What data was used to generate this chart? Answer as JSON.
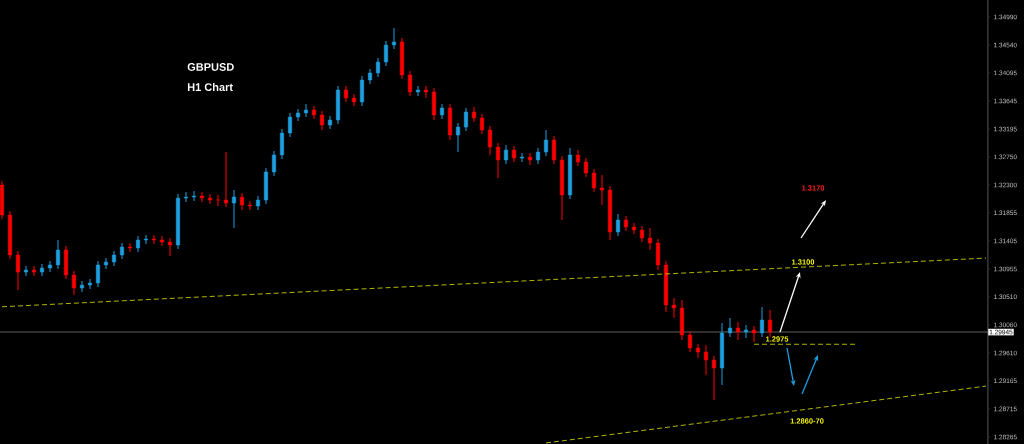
{
  "chart_data": {
    "type": "candlestick",
    "title": "GBPUSD",
    "subtitle": "H1 Chart",
    "categories": [
      null,
      null,
      null,
      null,
      null,
      null,
      null,
      null,
      null,
      null,
      null,
      null,
      null,
      null,
      null,
      null,
      null,
      null,
      null,
      null,
      null,
      null,
      null,
      null,
      null,
      null,
      null,
      null,
      null,
      null,
      null,
      null,
      null,
      null,
      null,
      null,
      null,
      null,
      null,
      null,
      null,
      null,
      null,
      null,
      null,
      null,
      null,
      null,
      null,
      null,
      null,
      null,
      null,
      null,
      null,
      null,
      null,
      null,
      null,
      null,
      null,
      null,
      null,
      null,
      null,
      null,
      null,
      null,
      null,
      null,
      null,
      null,
      null,
      null,
      null,
      null,
      null,
      null,
      null,
      null,
      null,
      null,
      null,
      null,
      null,
      null,
      null,
      null,
      null,
      null,
      null,
      null,
      null,
      null,
      null,
      null,
      null,
      null,
      null,
      null,
      null,
      null,
      null,
      null,
      null,
      null,
      null,
      null,
      null,
      null,
      null,
      null,
      null,
      null,
      null,
      null,
      null,
      null,
      null,
      null,
      null,
      null,
      null,
      null
    ],
    "ohlc": [
      [
        1.323,
        1.32364,
        1.31755,
        1.31819
      ],
      [
        1.31819,
        1.31883,
        1.31115,
        1.31179
      ],
      [
        1.31179,
        1.31243,
        1.30618,
        1.30906
      ],
      [
        1.30906,
        1.31003,
        1.30842,
        1.30938
      ],
      [
        1.30938,
        1.31003,
        1.30842,
        1.30906
      ],
      [
        1.30906,
        1.31035,
        1.30842,
        1.3097
      ],
      [
        1.3097,
        1.31083,
        1.30906,
        1.31019
      ],
      [
        1.31019,
        1.31419,
        1.30954,
        1.31259
      ],
      [
        1.31259,
        1.31323,
        1.30794,
        1.30858
      ],
      [
        1.30858,
        1.30922,
        1.30538,
        1.3065
      ],
      [
        1.3065,
        1.30762,
        1.30586,
        1.30698
      ],
      [
        1.30698,
        1.30794,
        1.30634,
        1.3073
      ],
      [
        1.3073,
        1.31083,
        1.30666,
        1.31019
      ],
      [
        1.31019,
        1.31131,
        1.30954,
        1.31067
      ],
      [
        1.31067,
        1.31243,
        1.31003,
        1.31179
      ],
      [
        1.31179,
        1.31371,
        1.31115,
        1.31307
      ],
      [
        1.31307,
        1.31371,
        1.31227,
        1.31291
      ],
      [
        1.31291,
        1.31483,
        1.31227,
        1.31419
      ],
      [
        1.31419,
        1.31499,
        1.31355,
        1.31435
      ],
      [
        1.31435,
        1.31499,
        1.31355,
        1.31419
      ],
      [
        1.31419,
        1.31483,
        1.31323,
        1.31387
      ],
      [
        1.31387,
        1.31451,
        1.31163,
        1.31339
      ],
      [
        1.31339,
        1.32155,
        1.31275,
        1.32091
      ],
      [
        1.32091,
        1.32187,
        1.32027,
        1.32107
      ],
      [
        1.32107,
        1.32203,
        1.32043,
        1.32123
      ],
      [
        1.32123,
        1.32187,
        1.32027,
        1.32091
      ],
      [
        1.32091,
        1.32155,
        1.31995,
        1.32059
      ],
      [
        1.32059,
        1.32139,
        1.31963,
        1.32059
      ],
      [
        1.32059,
        1.32828,
        1.31947,
        1.32011
      ],
      [
        1.32011,
        1.32219,
        1.31611,
        1.32107
      ],
      [
        1.32107,
        1.32171,
        1.31899,
        1.31979
      ],
      [
        1.31979,
        1.32043,
        1.31899,
        1.31963
      ],
      [
        1.31963,
        1.32123,
        1.31899,
        1.32059
      ],
      [
        1.32059,
        1.32572,
        1.31995,
        1.32508
      ],
      [
        1.32508,
        1.32844,
        1.32444,
        1.3278
      ],
      [
        1.3278,
        1.33196,
        1.32716,
        1.33132
      ],
      [
        1.33132,
        1.33453,
        1.33068,
        1.33389
      ],
      [
        1.33389,
        1.33517,
        1.33324,
        1.33453
      ],
      [
        1.33453,
        1.33597,
        1.33389,
        1.33501
      ],
      [
        1.33501,
        1.33565,
        1.33356,
        1.33421
      ],
      [
        1.33421,
        1.33485,
        1.3318,
        1.3326
      ],
      [
        1.3326,
        1.33405,
        1.33196,
        1.3334
      ],
      [
        1.3334,
        1.33885,
        1.33276,
        1.33821
      ],
      [
        1.33821,
        1.33885,
        1.33629,
        1.33693
      ],
      [
        1.33693,
        1.33757,
        1.33565,
        1.33629
      ],
      [
        1.33629,
        1.34045,
        1.33565,
        1.33981
      ],
      [
        1.33981,
        1.34157,
        1.33917,
        1.34093
      ],
      [
        1.34093,
        1.34333,
        1.34029,
        1.34269
      ],
      [
        1.34269,
        1.34606,
        1.34205,
        1.34541
      ],
      [
        1.34541,
        1.34814,
        1.34477,
        1.34589
      ],
      [
        1.34589,
        1.34654,
        1.33997,
        1.34061
      ],
      [
        1.34061,
        1.34125,
        1.33725,
        1.33789
      ],
      [
        1.33789,
        1.33885,
        1.33725,
        1.33821
      ],
      [
        1.33821,
        1.33885,
        1.33693,
        1.33789
      ],
      [
        1.33789,
        1.33853,
        1.3334,
        1.33421
      ],
      [
        1.33421,
        1.33597,
        1.33356,
        1.33533
      ],
      [
        1.33533,
        1.33597,
        1.3302,
        1.331
      ],
      [
        1.331,
        1.33292,
        1.32828,
        1.33228
      ],
      [
        1.33228,
        1.33533,
        1.33164,
        1.33469
      ],
      [
        1.33469,
        1.33549,
        1.33308,
        1.33373
      ],
      [
        1.33373,
        1.33437,
        1.33116,
        1.3318
      ],
      [
        1.3318,
        1.33244,
        1.3278,
        1.32908
      ],
      [
        1.32908,
        1.32972,
        1.32412,
        1.327
      ],
      [
        1.327,
        1.3294,
        1.32636,
        1.3286
      ],
      [
        1.3286,
        1.32924,
        1.32668,
        1.32732
      ],
      [
        1.32732,
        1.32812,
        1.32668,
        1.32748
      ],
      [
        1.32748,
        1.32812,
        1.3262,
        1.327
      ],
      [
        1.327,
        1.32892,
        1.32636,
        1.32828
      ],
      [
        1.32828,
        1.3318,
        1.32764,
        1.3302
      ],
      [
        1.3302,
        1.33084,
        1.32636,
        1.327
      ],
      [
        1.327,
        1.32764,
        1.31739,
        1.32139
      ],
      [
        1.32139,
        1.32892,
        1.32075,
        1.3278
      ],
      [
        1.3278,
        1.3286,
        1.32604,
        1.32668
      ],
      [
        1.32668,
        1.32732,
        1.32428,
        1.32492
      ],
      [
        1.32492,
        1.32556,
        1.32187,
        1.32251
      ],
      [
        1.32251,
        1.3246,
        1.31979,
        1.32219
      ],
      [
        1.32219,
        1.32284,
        1.31419,
        1.31547
      ],
      [
        1.31547,
        1.31835,
        1.31483,
        1.31739
      ],
      [
        1.31739,
        1.31803,
        1.31563,
        1.31627
      ],
      [
        1.31627,
        1.31691,
        1.31515,
        1.31579
      ],
      [
        1.31579,
        1.31643,
        1.31387,
        1.31451
      ],
      [
        1.31451,
        1.31611,
        1.31259,
        1.31371
      ],
      [
        1.31371,
        1.31435,
        1.30938,
        1.31019
      ],
      [
        1.31019,
        1.31083,
        1.30266,
        1.30378
      ],
      [
        1.30378,
        1.3049,
        1.3017,
        1.3033
      ],
      [
        1.3033,
        1.30458,
        1.29818,
        1.29898
      ],
      [
        1.29898,
        1.29962,
        1.29626,
        1.2969
      ],
      [
        1.2969,
        1.29754,
        1.2953,
        1.29626
      ],
      [
        1.29626,
        1.29738,
        1.29257,
        1.29498
      ],
      [
        1.29498,
        1.29562,
        1.28857,
        1.2937
      ],
      [
        1.2937,
        1.3009,
        1.29097,
        1.2993
      ],
      [
        1.2993,
        1.3017,
        1.29866,
        1.3001
      ],
      [
        1.3001,
        1.30106,
        1.29818,
        1.29946
      ],
      [
        1.29946,
        1.30058,
        1.2985,
        1.29978
      ],
      [
        1.29978,
        1.30042,
        1.29786,
        1.2993
      ],
      [
        1.2993,
        1.30346,
        1.29866,
        1.30138
      ],
      [
        1.30138,
        1.30298,
        1.29866,
        1.29945
      ],
      null,
      null,
      null,
      null,
      null,
      null,
      null,
      null,
      null,
      null,
      null,
      null,
      null,
      null,
      null,
      null,
      null,
      null,
      null,
      null,
      null,
      null,
      null,
      null,
      null,
      null,
      null
    ],
    "colors": [
      "#ff0000",
      "#ff0000",
      "#ff0000",
      "#1e9fe0",
      "#ff0000",
      "#1e9fe0",
      "#1e9fe0",
      "#1e9fe0",
      "#ff0000",
      "#ff0000",
      "#1e9fe0",
      "#1e9fe0",
      "#1e9fe0",
      "#1e9fe0",
      "#1e9fe0",
      "#1e9fe0",
      "#ff0000",
      "#1e9fe0",
      "#1e9fe0",
      "#ff0000",
      "#ff0000",
      "#ff0000",
      "#1e9fe0",
      "#1e9fe0",
      "#1e9fe0",
      "#ff0000",
      "#ff0000",
      "#ff0000",
      "#ff0000",
      "#1e9fe0",
      "#ff0000",
      "#ff0000",
      "#1e9fe0",
      "#1e9fe0",
      "#1e9fe0",
      "#1e9fe0",
      "#1e9fe0",
      "#1e9fe0",
      "#1e9fe0",
      "#ff0000",
      "#ff0000",
      "#1e9fe0",
      "#1e9fe0",
      "#ff0000",
      "#ff0000",
      "#1e9fe0",
      "#1e9fe0",
      "#1e9fe0",
      "#1e9fe0",
      "#1e9fe0",
      "#ff0000",
      "#ff0000",
      "#1e9fe0",
      "#ff0000",
      "#ff0000",
      "#1e9fe0",
      "#ff0000",
      "#1e9fe0",
      "#1e9fe0",
      "#ff0000",
      "#ff0000",
      "#ff0000",
      "#ff0000",
      "#1e9fe0",
      "#ff0000",
      "#1e9fe0",
      "#ff0000",
      "#1e9fe0",
      "#1e9fe0",
      "#ff0000",
      "#ff0000",
      "#1e9fe0",
      "#ff0000",
      "#ff0000",
      "#ff0000",
      "#ff0000",
      "#ff0000",
      "#1e9fe0",
      "#ff0000",
      "#ff0000",
      "#ff0000",
      "#ff0000",
      "#ff0000",
      "#ff0000",
      "#ff0000",
      "#ff0000",
      "#ff0000",
      "#ff0000",
      "#ff0000",
      "#ff0000",
      "#1e9fe0",
      "#1e9fe0",
      "#ff0000",
      "#1e9fe0",
      "#ff0000",
      "#1e9fe0",
      "#ff0000",
      null,
      null,
      null,
      null,
      null,
      null,
      null,
      null,
      null,
      null,
      null,
      null,
      null,
      null,
      null,
      null,
      null,
      null,
      null,
      null,
      null,
      null,
      null,
      null,
      null,
      null,
      null
    ],
    "ylim": [
      1.28153,
      1.35262
    ],
    "yticks": [
      {
        "value": 1.3499,
        "label": "1.34990"
      },
      {
        "value": 1.3454,
        "label": "1.34540"
      },
      1.34095,
      1.33645,
      1.33195,
      {
        "value": 1.3275,
        "label": "1.32750"
      },
      {
        "value": 1.323,
        "label": "1.32300"
      },
      1.31855,
      1.31405,
      1.30955,
      {
        "value": 1.3051,
        "label": "1.30510"
      },
      {
        "value": 1.3006,
        "label": "1.30060"
      },
      {
        "value": 1.2961,
        "label": "1.29610"
      },
      1.29165,
      1.28715,
      1.28265
    ],
    "tick_labels": "y",
    "series": [
      {
        "type": "line",
        "values": [
          1.3035,
          null,
          null,
          null,
          null,
          null,
          null,
          null,
          null,
          null,
          null,
          null,
          null,
          null,
          null,
          null,
          null,
          null,
          null,
          null,
          null,
          null,
          null,
          null,
          null,
          null,
          null,
          null,
          null,
          null,
          null,
          null,
          null,
          null,
          null,
          null,
          null,
          null,
          null,
          null,
          null,
          null,
          null,
          null,
          null,
          null,
          null,
          null,
          null,
          null,
          null,
          null,
          null,
          null,
          null,
          null,
          null,
          null,
          null,
          null,
          null,
          null,
          null,
          null,
          null,
          null,
          null,
          null,
          null,
          null,
          null,
          null,
          null,
          null,
          null,
          null,
          null,
          null,
          null,
          null,
          null,
          null,
          null,
          null,
          null,
          null,
          null,
          null,
          null,
          null,
          null,
          null,
          null,
          null,
          null,
          null,
          null,
          null,
          null,
          null,
          null,
          null,
          null,
          null,
          null,
          null,
          null,
          null,
          null,
          null,
          null,
          null,
          null,
          null,
          null,
          null,
          null,
          null,
          null,
          null,
          null,
          null,
          null,
          1.3113
        ],
        "color": "#c8c800",
        "line_style": "dashed"
      },
      {
        "type": "line",
        "values": [
          null,
          null,
          null,
          null,
          null,
          null,
          null,
          null,
          null,
          null,
          null,
          null,
          null,
          null,
          null,
          null,
          null,
          null,
          null,
          null,
          null,
          null,
          null,
          null,
          null,
          null,
          null,
          null,
          null,
          null,
          null,
          null,
          null,
          null,
          null,
          null,
          null,
          null,
          null,
          null,
          null,
          null,
          null,
          null,
          null,
          null,
          null,
          null,
          null,
          null,
          null,
          null,
          null,
          null,
          null,
          null,
          null,
          null,
          null,
          null,
          null,
          null,
          null,
          null,
          null,
          null,
          null,
          null,
          1.2817,
          null,
          null,
          null,
          null,
          null,
          null,
          null,
          null,
          null,
          null,
          null,
          null,
          null,
          null,
          null,
          null,
          null,
          null,
          null,
          null,
          null,
          null,
          null,
          null,
          null,
          null,
          null,
          null,
          null,
          null,
          null,
          null,
          null,
          null,
          null,
          null,
          null,
          null,
          null,
          null,
          null,
          null,
          null,
          null,
          null,
          null,
          null,
          null,
          null,
          null,
          null,
          null,
          null,
          null,
          1.2908
        ],
        "color": "#c8c800",
        "line_style": "dashed"
      },
      {
        "type": "line",
        "values": [
          null,
          null,
          null,
          null,
          null,
          null,
          null,
          null,
          null,
          null,
          null,
          null,
          null,
          null,
          null,
          null,
          null,
          null,
          null,
          null,
          null,
          null,
          null,
          null,
          null,
          null,
          null,
          null,
          null,
          null,
          null,
          null,
          null,
          null,
          null,
          null,
          null,
          null,
          null,
          null,
          null,
          null,
          null,
          null,
          null,
          null,
          null,
          null,
          null,
          null,
          null,
          null,
          null,
          null,
          null,
          null,
          null,
          null,
          null,
          null,
          null,
          null,
          null,
          null,
          null,
          null,
          null,
          null,
          null,
          null,
          null,
          null,
          null,
          null,
          null,
          null,
          null,
          null,
          null,
          null,
          null,
          null,
          null,
          null,
          null,
          null,
          null,
          null,
          null,
          null,
          null,
          null,
          null,
          null,
          1.2975,
          null,
          null,
          null,
          null,
          null,
          null,
          null,
          null,
          null,
          null,
          null,
          null,
          1.2975,
          null,
          null,
          null,
          null,
          null,
          null,
          null,
          null,
          null,
          null,
          null,
          null,
          null,
          null,
          null,
          null
        ],
        "color": "#c8c800",
        "line_style": "dashed"
      }
    ],
    "ref_lines": [
      {
        "axis": "y",
        "value": 1.29945,
        "label": "1.29945",
        "color": "#606060"
      }
    ],
    "annotations": [
      "1.3170",
      "1.3100",
      "1.2975",
      "1.2860-70"
    ]
  }
}
